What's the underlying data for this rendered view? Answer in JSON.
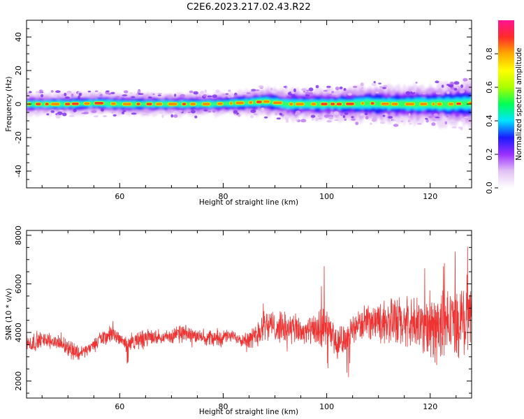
{
  "title": "C2E6.2023.217.02.43.R22",
  "chart_data": [
    {
      "type": "heatmap",
      "title": "",
      "xlabel": "Height of straight line (km)",
      "ylabel": "Frequency (Hz)",
      "xlim": [
        42,
        128
      ],
      "ylim": [
        -50,
        50
      ],
      "xticks": [
        60,
        80,
        100,
        120
      ],
      "yticks": [
        -40,
        -20,
        0,
        20,
        40
      ],
      "ridge": {
        "x": [
          42,
          50,
          56,
          60,
          66,
          72,
          78,
          82,
          86,
          88,
          90,
          92,
          96,
          100,
          104,
          108,
          112,
          116,
          120,
          124,
          128
        ],
        "frequency_hz": [
          0,
          0,
          0.5,
          0,
          0,
          0,
          0,
          0.5,
          1,
          1.5,
          1,
          0,
          0,
          0,
          0,
          0.5,
          0,
          0,
          0,
          0,
          0.5
        ]
      },
      "band_half_width_hz": {
        "x": [
          42,
          60,
          80,
          90,
          100,
          110,
          120,
          128
        ],
        "values": [
          3,
          3,
          3,
          4,
          4,
          5,
          5,
          6
        ]
      },
      "colorbar": {
        "label": "Normalized spectral amplitude",
        "range": [
          0,
          1
        ],
        "ticks": [
          0.0,
          0.2,
          0.4,
          0.6,
          0.8
        ],
        "colormap": [
          "#ffffff",
          "#e2c2f5",
          "#9b30ff",
          "#1a1aff",
          "#00e5ff",
          "#00ff55",
          "#aaff00",
          "#ffff00",
          "#ffaa00",
          "#ff2a2a",
          "#ff1493"
        ]
      }
    },
    {
      "type": "line",
      "title": "",
      "xlabel": "Height of straight line (km)",
      "ylabel": "SNR (10 * v/v)",
      "xlim": [
        42,
        128
      ],
      "ylim": [
        1300,
        8200
      ],
      "xticks": [
        60,
        80,
        100,
        120
      ],
      "yticks": [
        2000,
        4000,
        6000,
        8000
      ],
      "color": "#ee3333",
      "series": [
        {
          "x": [
            42,
            44,
            46,
            48,
            50,
            52,
            54,
            56,
            58,
            60,
            61.5,
            62,
            64,
            66,
            68,
            70,
            72,
            74,
            76,
            78,
            80,
            82,
            84,
            86,
            88,
            90,
            92,
            94,
            96,
            98,
            99,
            99.5,
            100,
            102,
            104,
            106,
            108,
            110,
            112,
            114,
            116,
            118,
            120,
            122,
            124,
            126,
            128
          ],
          "values": [
            3500,
            3650,
            3700,
            3600,
            3400,
            3150,
            3300,
            3700,
            3900,
            3800,
            3500,
            3550,
            3700,
            3800,
            3800,
            3850,
            3950,
            3900,
            3800,
            3750,
            3800,
            3850,
            3700,
            3800,
            4400,
            4200,
            4200,
            4100,
            4000,
            4100,
            3600,
            4500,
            4300,
            3500,
            3900,
            4300,
            4400,
            4500,
            4500,
            4400,
            4300,
            4300,
            4200,
            4300,
            4400,
            4500,
            4600
          ]
        }
      ]
    }
  ]
}
